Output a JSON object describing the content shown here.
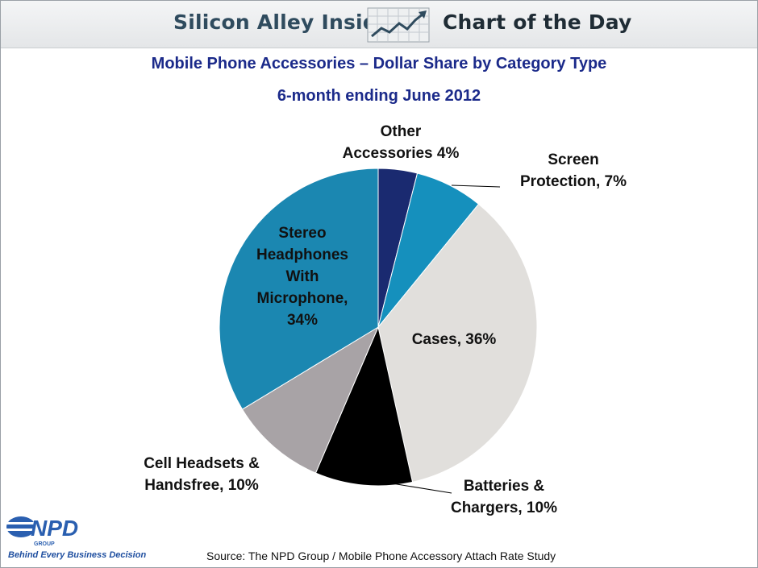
{
  "header": {
    "brand_left": "Silicon Alley Insider",
    "brand_right": "Chart of the Day",
    "icon": "trend-up-chart-icon"
  },
  "chart_data": {
    "type": "pie",
    "title": "Mobile Phone Accessories – Dollar Share by Category Type",
    "subtitle": "6-month ending June 2012",
    "start_angle_deg": 0,
    "direction": "clockwise",
    "slices": [
      {
        "name": "Other Accessories",
        "value": 4,
        "color": "#1a2a70",
        "label_lines": [
          "Other",
          "Accessories 4%"
        ]
      },
      {
        "name": "Screen Protection",
        "value": 7,
        "color": "#1590bd",
        "label_lines": [
          "Screen",
          "Protection,  7%"
        ]
      },
      {
        "name": "Cases",
        "value": 36,
        "color": "#e1dfdc",
        "label_lines": [
          "Cases, 36%"
        ]
      },
      {
        "name": "Batteries & Chargers",
        "value": 10,
        "color": "#000000",
        "label_lines": [
          "Batteries &",
          "Chargers, 10%"
        ]
      },
      {
        "name": "Cell Headsets & Handsfree",
        "value": 10,
        "color": "#a8a3a6",
        "label_lines": [
          "Cell Headsets &",
          "Handsfree, 10%"
        ]
      },
      {
        "name": "Stereo Headphones With Microphone",
        "value": 34,
        "color": "#1b87b1",
        "label_lines": [
          "Stereo",
          "Headphones",
          "With",
          "Microphone,",
          "34%"
        ]
      }
    ]
  },
  "footer": {
    "source": "Source: The NPD Group / Mobile Phone Accessory Attach Rate Study",
    "logo_text": "NPD",
    "logo_sub": "GROUP",
    "tagline": "Behind Every Business Decision"
  }
}
